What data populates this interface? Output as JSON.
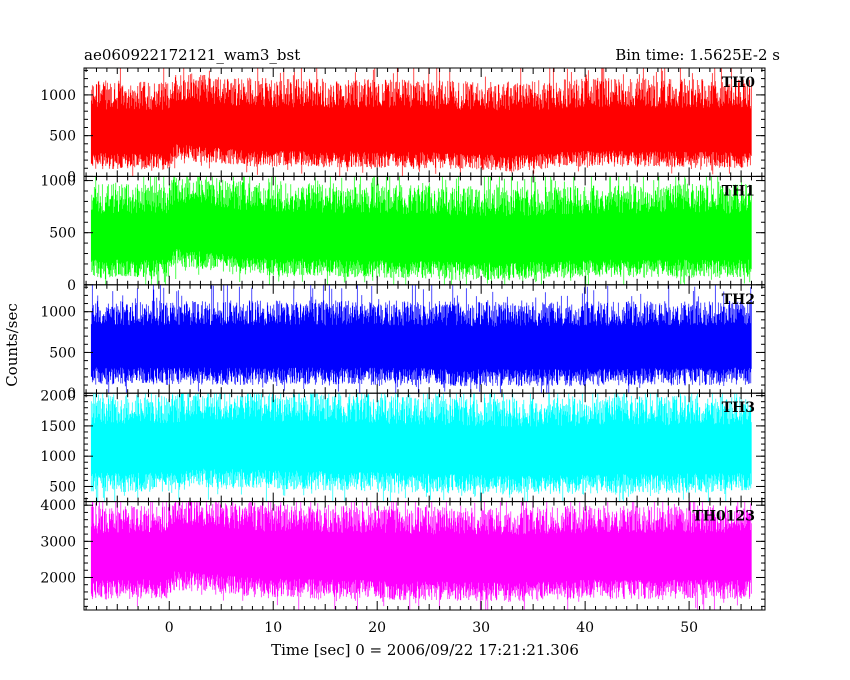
{
  "chart_data": {
    "type": "line",
    "title_left": "ae060922172121_wam3_bst",
    "title_right": "Bin time: 1.5625E-2 s",
    "xlabel": "Time [sec] 0 = 2006/09/22 17:21:21.306",
    "ylabel": "Counts/sec",
    "xlim": [
      -8.2,
      57.3
    ],
    "xticks": [
      0,
      10,
      20,
      30,
      40,
      50
    ],
    "x_data_range": [
      -7.5,
      56.0
    ],
    "grid": false,
    "panels": [
      {
        "name": "TH0",
        "color": "#ff0000",
        "ylim": [
          0,
          1330
        ],
        "yticks": [
          0,
          500,
          1000
        ],
        "ytick_labels": [
          "0",
          "500",
          "1000"
        ],
        "level": [
          [
            -7.5,
            530
          ],
          [
            0,
            520
          ],
          [
            0.5,
            640
          ],
          [
            3,
            610
          ],
          [
            8,
            560
          ],
          [
            25,
            540
          ],
          [
            33,
            500
          ],
          [
            40,
            560
          ],
          [
            56,
            540
          ]
        ],
        "spread_low": 440,
        "spread_high": 650
      },
      {
        "name": "TH1",
        "color": "#00ff00",
        "ylim": [
          0,
          1040
        ],
        "yticks": [
          0,
          500,
          1000
        ],
        "ytick_labels": [
          "0",
          "500",
          "1000"
        ],
        "level": [
          [
            -7.5,
            450
          ],
          [
            0,
            450
          ],
          [
            0.5,
            560
          ],
          [
            3,
            530
          ],
          [
            8,
            470
          ],
          [
            33,
            420
          ],
          [
            40,
            450
          ],
          [
            56,
            450
          ]
        ],
        "spread_low": 380,
        "spread_high": 520
      },
      {
        "name": "TH2",
        "color": "#0000ff",
        "ylim": [
          0,
          1330
        ],
        "yticks": [
          0,
          500,
          1000
        ],
        "ytick_labels": [
          "0",
          "500",
          "1000"
        ],
        "level": [
          [
            -7.5,
            580
          ],
          [
            20,
            580
          ],
          [
            33,
            560
          ],
          [
            56,
            580
          ]
        ],
        "spread_low": 480,
        "spread_high": 560
      },
      {
        "name": "TH3",
        "color": "#00ffff",
        "ylim": [
          250,
          2040
        ],
        "yticks": [
          500,
          1000,
          1500,
          2000
        ],
        "ytick_labels": [
          "500",
          "1000",
          "1500",
          "2000"
        ],
        "level": [
          [
            -7.5,
            1120
          ],
          [
            0,
            1130
          ],
          [
            3,
            1200
          ],
          [
            20,
            1130
          ],
          [
            33,
            1080
          ],
          [
            56,
            1120
          ]
        ],
        "spread_low": 720,
        "spread_high": 900
      },
      {
        "name": "TH0123",
        "color": "#ff00ff",
        "ylim": [
          1100,
          4100
        ],
        "yticks": [
          2000,
          3000,
          4000
        ],
        "ytick_labels": [
          "2000",
          "3000",
          "4000"
        ],
        "level": [
          [
            -7.5,
            2580
          ],
          [
            0,
            2620
          ],
          [
            0.5,
            2850
          ],
          [
            3,
            2800
          ],
          [
            8,
            2650
          ],
          [
            33,
            2520
          ],
          [
            40,
            2600
          ],
          [
            56,
            2600
          ]
        ],
        "spread_low": 1200,
        "spread_high": 1400
      }
    ]
  }
}
